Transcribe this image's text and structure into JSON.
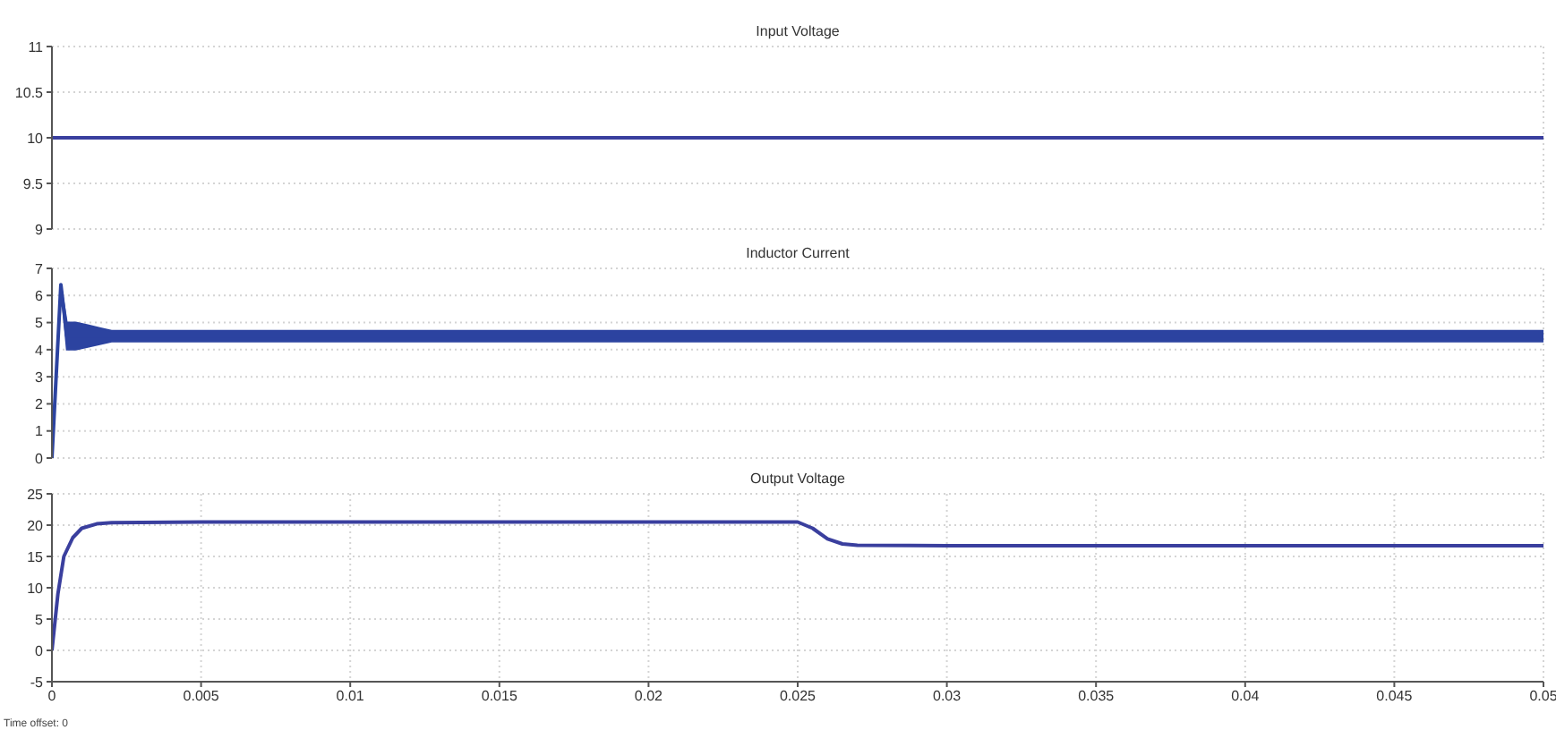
{
  "chart_data": [
    {
      "type": "line",
      "title": "Input Voltage",
      "xlim": [
        0,
        0.05
      ],
      "xticks": [
        0,
        0.005,
        0.01,
        0.015,
        0.02,
        0.025,
        0.03,
        0.035,
        0.04,
        0.045,
        0.05
      ],
      "ylim": [
        9,
        11
      ],
      "yticks": [
        9,
        9.5,
        10,
        10.5,
        11
      ],
      "grid": true,
      "tick_labels": "y",
      "marker": "none",
      "line_style": "solid",
      "series": [
        {
          "x": [
            0,
            0.05
          ],
          "values": [
            10,
            10
          ],
          "color": "#3a3f9e"
        }
      ]
    },
    {
      "type": "line",
      "title": "Inductor Current",
      "xlim": [
        0,
        0.05
      ],
      "xticks": [
        0,
        0.005,
        0.01,
        0.015,
        0.02,
        0.025,
        0.03,
        0.035,
        0.04,
        0.045,
        0.05
      ],
      "ylim": [
        0,
        7
      ],
      "yticks": [
        0,
        1,
        2,
        3,
        4,
        5,
        6,
        7
      ],
      "grid": true,
      "tick_labels": "y",
      "marker": "none",
      "line_style": "solid",
      "series": [
        {
          "x": [
            0,
            0.0003,
            0.0005,
            0.0008,
            0.0012,
            0.0016,
            0.002,
            0.005,
            0.01,
            0.015,
            0.02,
            0.025,
            0.03,
            0.035,
            0.04,
            0.045,
            0.05
          ],
          "values": [
            0,
            6.4,
            4.5,
            4.5,
            4.5,
            4.5,
            4.5,
            4.5,
            4.5,
            4.5,
            4.5,
            4.5,
            4.5,
            4.5,
            4.5,
            4.5,
            4.5
          ],
          "lower": [
            0,
            6.4,
            4,
            4,
            4.1,
            4.2,
            4.3,
            4.3,
            4.3,
            4.3,
            4.3,
            4.3,
            4.3,
            4.3,
            4.3,
            4.3,
            4.3
          ],
          "upper": [
            0,
            6.4,
            5,
            5,
            4.9,
            4.8,
            4.7,
            4.7,
            4.7,
            4.7,
            4.7,
            4.7,
            4.7,
            4.7,
            4.7,
            4.7,
            4.7
          ],
          "color": "#2c43a0"
        }
      ]
    },
    {
      "type": "line",
      "title": "Output Voltage",
      "xlim": [
        0,
        0.05
      ],
      "xticks": [
        0,
        0.005,
        0.01,
        0.015,
        0.02,
        0.025,
        0.03,
        0.035,
        0.04,
        0.045,
        0.05
      ],
      "ylim": [
        -5,
        25
      ],
      "yticks": [
        -5,
        0,
        5,
        10,
        15,
        20,
        25
      ],
      "grid": true,
      "marker": "none",
      "line_style": "solid",
      "annotations": [
        "Time offset: 0"
      ],
      "series": [
        {
          "x": [
            0,
            0.0002,
            0.0004,
            0.0007,
            0.001,
            0.0015,
            0.002,
            0.005,
            0.01,
            0.015,
            0.02,
            0.025,
            0.0255,
            0.026,
            0.0265,
            0.027,
            0.03,
            0.035,
            0.04,
            0.045,
            0.05
          ],
          "values": [
            0,
            9,
            15,
            18,
            19.5,
            20.2,
            20.4,
            20.5,
            20.5,
            20.5,
            20.5,
            20.5,
            19.5,
            17.8,
            17,
            16.8,
            16.7,
            16.7,
            16.7,
            16.7,
            16.7
          ],
          "color": "#3a3f9e"
        }
      ]
    }
  ]
}
